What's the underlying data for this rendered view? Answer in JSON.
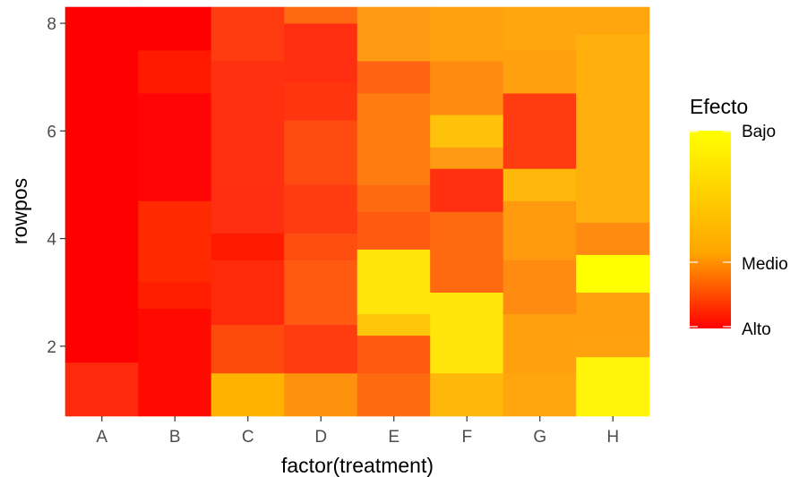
{
  "chart_data": {
    "type": "heatmap",
    "xlabel": "factor(treatment)",
    "ylabel": "rowpos",
    "x_categories": [
      "A",
      "B",
      "C",
      "D",
      "E",
      "F",
      "G",
      "H"
    ],
    "y_ticks": [
      2,
      4,
      6,
      8
    ],
    "ylim": [
      0.7,
      8.3
    ],
    "grid": true,
    "background": "#ebebeb",
    "legend": {
      "title": "Efecto",
      "placement": "right",
      "scale": "continuous",
      "labels": [
        "Bajo",
        "Medio",
        "Alto"
      ],
      "colors_high_to_low": [
        "#ffff00",
        "#ffa500",
        "#ff0000"
      ]
    },
    "columns": [
      {
        "treatment": "A",
        "cells": [
          {
            "ymin": 0.7,
            "ymax": 1.7,
            "color": "#ff2a0b"
          },
          {
            "ymin": 1.7,
            "ymax": 8.3,
            "color": "#ff0000"
          }
        ]
      },
      {
        "treatment": "B",
        "cells": [
          {
            "ymin": 0.7,
            "ymax": 2.7,
            "color": "#ff0a00"
          },
          {
            "ymin": 2.7,
            "ymax": 3.2,
            "color": "#ff1e00"
          },
          {
            "ymin": 3.2,
            "ymax": 4.7,
            "color": "#ff2a00"
          },
          {
            "ymin": 4.7,
            "ymax": 6.7,
            "color": "#ff0505"
          },
          {
            "ymin": 6.7,
            "ymax": 7.5,
            "color": "#ff1a00"
          },
          {
            "ymin": 7.5,
            "ymax": 8.0,
            "color": "#ff0000"
          },
          {
            "ymin": 8.0,
            "ymax": 8.3,
            "color": "#ff0000"
          }
        ]
      },
      {
        "treatment": "C",
        "cells": [
          {
            "ymin": 0.7,
            "ymax": 1.5,
            "color": "#ffb300"
          },
          {
            "ymin": 1.5,
            "ymax": 2.4,
            "color": "#ff4a0e"
          },
          {
            "ymin": 2.4,
            "ymax": 3.6,
            "color": "#ff2a0a"
          },
          {
            "ymin": 3.6,
            "ymax": 4.1,
            "color": "#ff1a00"
          },
          {
            "ymin": 4.1,
            "ymax": 5.0,
            "color": "#ff2e10"
          },
          {
            "ymin": 5.0,
            "ymax": 7.3,
            "color": "#ff3010"
          },
          {
            "ymin": 7.3,
            "ymax": 8.3,
            "color": "#ff3c10"
          }
        ]
      },
      {
        "treatment": "D",
        "cells": [
          {
            "ymin": 0.7,
            "ymax": 1.5,
            "color": "#ff920d"
          },
          {
            "ymin": 1.5,
            "ymax": 2.4,
            "color": "#ff3c10"
          },
          {
            "ymin": 2.4,
            "ymax": 3.6,
            "color": "#ff5a10"
          },
          {
            "ymin": 3.6,
            "ymax": 4.1,
            "color": "#ff4e10"
          },
          {
            "ymin": 4.1,
            "ymax": 5.0,
            "color": "#ff3c10"
          },
          {
            "ymin": 5.0,
            "ymax": 6.2,
            "color": "#ff4a10"
          },
          {
            "ymin": 6.2,
            "ymax": 6.9,
            "color": "#ff3510"
          },
          {
            "ymin": 6.9,
            "ymax": 8.0,
            "color": "#ff2e10"
          },
          {
            "ymin": 8.0,
            "ymax": 8.3,
            "color": "#ff6a10"
          }
        ]
      },
      {
        "treatment": "E",
        "cells": [
          {
            "ymin": 0.7,
            "ymax": 1.5,
            "color": "#ff6a10"
          },
          {
            "ymin": 1.5,
            "ymax": 2.2,
            "color": "#ff5a10"
          },
          {
            "ymin": 2.2,
            "ymax": 2.6,
            "color": "#ffc60a"
          },
          {
            "ymin": 2.6,
            "ymax": 3.8,
            "color": "#ffe50a"
          },
          {
            "ymin": 3.8,
            "ymax": 4.5,
            "color": "#ff5a10"
          },
          {
            "ymin": 4.5,
            "ymax": 5.0,
            "color": "#ff6a10"
          },
          {
            "ymin": 5.0,
            "ymax": 6.7,
            "color": "#ff7d10"
          },
          {
            "ymin": 6.7,
            "ymax": 7.3,
            "color": "#ff6414"
          },
          {
            "ymin": 7.3,
            "ymax": 8.3,
            "color": "#ff9a12"
          }
        ]
      },
      {
        "treatment": "F",
        "cells": [
          {
            "ymin": 0.7,
            "ymax": 1.5,
            "color": "#ffb80a"
          },
          {
            "ymin": 1.5,
            "ymax": 3.0,
            "color": "#ffe50a"
          },
          {
            "ymin": 3.0,
            "ymax": 4.5,
            "color": "#ff6a10"
          },
          {
            "ymin": 4.5,
            "ymax": 5.3,
            "color": "#ff3010"
          },
          {
            "ymin": 5.3,
            "ymax": 5.7,
            "color": "#ff9a12"
          },
          {
            "ymin": 5.7,
            "ymax": 6.3,
            "color": "#ffc20a"
          },
          {
            "ymin": 6.3,
            "ymax": 7.3,
            "color": "#ff8c10"
          },
          {
            "ymin": 7.3,
            "ymax": 8.3,
            "color": "#ffa20e"
          }
        ]
      },
      {
        "treatment": "G",
        "cells": [
          {
            "ymin": 0.7,
            "ymax": 1.5,
            "color": "#ffa50e"
          },
          {
            "ymin": 1.5,
            "ymax": 2.6,
            "color": "#ffa00e"
          },
          {
            "ymin": 2.6,
            "ymax": 3.6,
            "color": "#ff8c10"
          },
          {
            "ymin": 3.6,
            "ymax": 4.7,
            "color": "#ff9a0e"
          },
          {
            "ymin": 4.7,
            "ymax": 5.3,
            "color": "#ffb70c"
          },
          {
            "ymin": 5.3,
            "ymax": 6.7,
            "color": "#ff3c10"
          },
          {
            "ymin": 6.7,
            "ymax": 7.5,
            "color": "#ffa00e"
          },
          {
            "ymin": 7.5,
            "ymax": 8.3,
            "color": "#ffa50e"
          }
        ]
      },
      {
        "treatment": "H",
        "cells": [
          {
            "ymin": 0.7,
            "ymax": 1.8,
            "color": "#fff50a"
          },
          {
            "ymin": 1.8,
            "ymax": 2.2,
            "color": "#ffa20e"
          },
          {
            "ymin": 2.2,
            "ymax": 3.0,
            "color": "#ffa00e"
          },
          {
            "ymin": 3.0,
            "ymax": 3.7,
            "color": "#ffff00"
          },
          {
            "ymin": 3.7,
            "ymax": 4.3,
            "color": "#ff8c10"
          },
          {
            "ymin": 4.3,
            "ymax": 7.8,
            "color": "#ffb00c"
          },
          {
            "ymin": 7.8,
            "ymax": 8.3,
            "color": "#ffa50e"
          }
        ]
      }
    ]
  }
}
